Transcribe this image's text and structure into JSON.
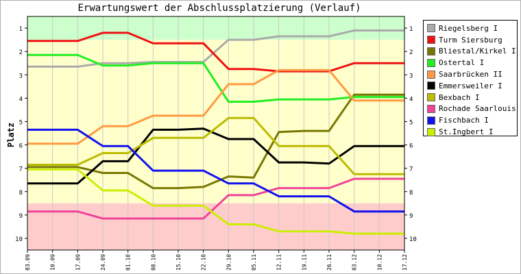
{
  "chart_data": {
    "type": "line",
    "title": "Erwartungswert der Abschlussplatzierung (Verlauf)",
    "xlabel": "",
    "ylabel": "Platz",
    "ylim": [
      10.5,
      0.5
    ],
    "y_inverted": true,
    "yticks": [
      "1",
      "2",
      "3",
      "4",
      "5",
      "6",
      "7",
      "8",
      "9",
      "10"
    ],
    "x": [
      "03.09",
      "10.09",
      "17.09",
      "24.09",
      "01.10",
      "08.10",
      "15.10",
      "22.10",
      "29.10",
      "05.11",
      "12.11",
      "19.11",
      "26.11",
      "03.12",
      "10.12",
      "17.12"
    ],
    "bands": [
      {
        "from": 0.5,
        "to": 1.5,
        "color": "#ccffcc"
      },
      {
        "from": 1.5,
        "to": 8.5,
        "color": "#ffffcc"
      },
      {
        "from": 8.5,
        "to": 10.5,
        "color": "#ffcccc"
      }
    ],
    "grid": "vertical",
    "legend": "right",
    "series": [
      {
        "name": "Riegelsberg I",
        "color": "#aaaaaa",
        "values": [
          2.65,
          2.65,
          2.65,
          2.5,
          2.5,
          2.45,
          2.45,
          2.45,
          1.5,
          1.5,
          1.35,
          1.35,
          1.35,
          1.1,
          1.1,
          1.1
        ]
      },
      {
        "name": "Turm Siersburg",
        "color": "#ee1111",
        "values": [
          1.55,
          1.55,
          1.55,
          1.2,
          1.2,
          1.65,
          1.65,
          1.65,
          2.75,
          2.75,
          2.85,
          2.85,
          2.85,
          2.5,
          2.5,
          2.5
        ]
      },
      {
        "name": "Bliestal/Kirkel I",
        "color": "#777700",
        "values": [
          6.95,
          6.95,
          6.95,
          7.2,
          7.2,
          7.85,
          7.85,
          7.8,
          7.35,
          7.4,
          5.45,
          5.4,
          5.4,
          3.85,
          3.85,
          3.85
        ]
      },
      {
        "name": "Ostertal I",
        "color": "#22ee22",
        "values": [
          2.15,
          2.15,
          2.15,
          2.6,
          2.6,
          2.5,
          2.5,
          2.5,
          4.15,
          4.15,
          4.05,
          4.05,
          4.05,
          3.95,
          3.95,
          3.95
        ]
      },
      {
        "name": "Saarbrücken II",
        "color": "#ff9944",
        "values": [
          5.95,
          5.95,
          5.95,
          5.2,
          5.2,
          4.75,
          4.75,
          4.75,
          3.4,
          3.4,
          2.8,
          2.8,
          2.8,
          4.1,
          4.1,
          4.1
        ]
      },
      {
        "name": "Emmersweiler I",
        "color": "#000000",
        "values": [
          7.65,
          7.65,
          7.65,
          6.7,
          6.7,
          5.35,
          5.35,
          5.3,
          5.75,
          5.75,
          6.75,
          6.75,
          6.8,
          6.05,
          6.05,
          6.05
        ]
      },
      {
        "name": "Bexbach I",
        "color": "#bbbb00",
        "values": [
          6.85,
          6.85,
          6.85,
          6.35,
          6.35,
          5.7,
          5.7,
          5.7,
          4.85,
          4.85,
          6.05,
          6.05,
          6.05,
          7.25,
          7.25,
          7.25
        ]
      },
      {
        "name": "Rochade Saarlouis I",
        "color": "#ee4499",
        "values": [
          8.85,
          8.85,
          8.85,
          9.15,
          9.15,
          9.15,
          9.15,
          9.15,
          8.15,
          8.15,
          7.85,
          7.85,
          7.85,
          7.45,
          7.45,
          7.45
        ]
      },
      {
        "name": "Fischbach I",
        "color": "#1111ee",
        "values": [
          5.35,
          5.35,
          5.35,
          6.05,
          6.05,
          7.1,
          7.1,
          7.1,
          7.65,
          7.65,
          8.2,
          8.2,
          8.2,
          8.85,
          8.85,
          8.85
        ]
      },
      {
        "name": "St.Ingbert I",
        "color": "#ccee00",
        "values": [
          7.05,
          7.05,
          7.05,
          7.95,
          7.95,
          8.6,
          8.6,
          8.6,
          9.4,
          9.4,
          9.7,
          9.7,
          9.7,
          9.8,
          9.8,
          9.8
        ]
      }
    ]
  }
}
